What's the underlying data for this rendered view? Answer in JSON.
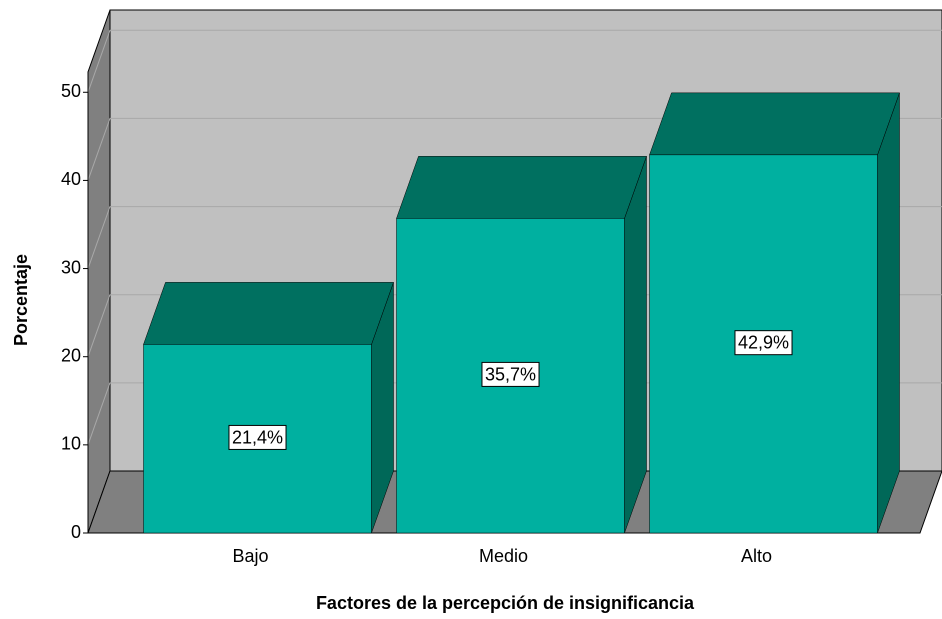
{
  "chart_data": {
    "type": "bar3d",
    "x_label": "Factores de la percepción de insignificancia",
    "y_label": "Porcentaje",
    "categories": [
      "Bajo",
      "Medio",
      "Alto"
    ],
    "values": [
      21.4,
      35.7,
      42.9
    ],
    "value_labels": [
      "21,4%",
      "35,7%",
      "42,9%"
    ],
    "color": "#00b0a0",
    "ylim": [
      0,
      52.3
    ],
    "yticks": [
      0,
      10,
      20,
      30,
      40,
      50
    ],
    "grid": true
  }
}
